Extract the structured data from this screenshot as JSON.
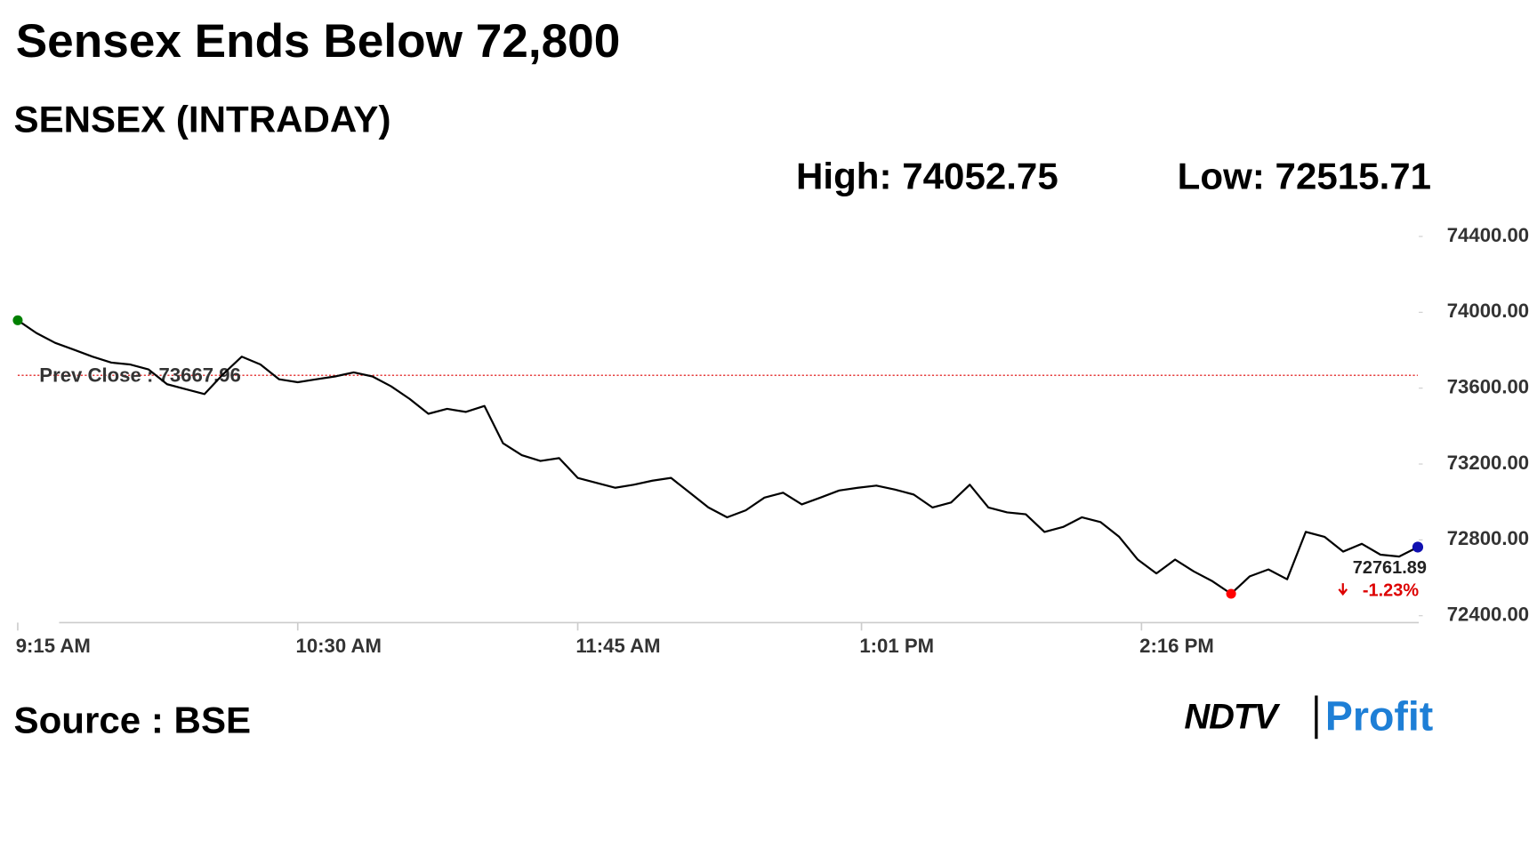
{
  "chart_data": {
    "type": "line",
    "title": "Sensex Ends Below 72,800",
    "subtitle": "SENSEX (INTRADAY)",
    "high": {
      "label": "High:",
      "value": 74052.75
    },
    "low": {
      "label": "Low:",
      "value": 72515.71
    },
    "prev_close": {
      "label": "Prev Close :",
      "value": 73667.96
    },
    "last": {
      "value": 72761.89,
      "change": -1.23,
      "change_label": "-1.23%"
    },
    "source": "Source : BSE",
    "logo": [
      "NDTV",
      "Profit"
    ],
    "color": "#000000",
    "x": [
      "9:15 AM",
      "9:20 AM",
      "9:25 AM",
      "9:30 AM",
      "9:35 AM",
      "9:40 AM",
      "9:45 AM",
      "9:50 AM",
      "9:55 AM",
      "10:00 AM",
      "10:05 AM",
      "10:10 AM",
      "10:15 AM",
      "10:20 AM",
      "10:25 AM",
      "10:30 AM",
      "10:35 AM",
      "10:40 AM",
      "10:45 AM",
      "10:50 AM",
      "10:55 AM",
      "11:00 AM",
      "11:05 AM",
      "11:10 AM",
      "11:15 AM",
      "11:20 AM",
      "11:25 AM",
      "11:30 AM",
      "11:35 AM",
      "11:40 AM",
      "11:45 AM",
      "11:50 AM",
      "11:55 AM",
      "12:00 PM",
      "12:05 PM",
      "12:10 PM",
      "12:15 PM",
      "12:20 PM",
      "12:25 PM",
      "12:30 PM",
      "12:35 PM",
      "12:40 PM",
      "12:45 PM",
      "12:50 PM",
      "12:55 PM",
      "1:00 PM",
      "1:05 PM",
      "1:10 PM",
      "1:15 PM",
      "1:20 PM",
      "1:25 PM",
      "1:30 PM",
      "1:35 PM",
      "1:40 PM",
      "1:45 PM",
      "1:50 PM",
      "1:55 PM",
      "2:00 PM",
      "2:05 PM",
      "2:10 PM",
      "2:15 PM",
      "2:20 PM",
      "2:25 PM",
      "2:30 PM",
      "2:35 PM",
      "2:40 PM",
      "2:45 PM",
      "2:50 PM",
      "2:55 PM",
      "3:00 PM",
      "3:05 PM",
      "3:10 PM",
      "3:15 PM",
      "3:20 PM",
      "3:25 PM",
      "3:30 PM"
    ],
    "values": [
      73958,
      73891,
      73839,
      73803,
      73766,
      73735,
      73725,
      73699,
      73621,
      73595,
      73569,
      73673,
      73766,
      73725,
      73647,
      73631,
      73647,
      73662,
      73683,
      73662,
      73610,
      73543,
      73465,
      73491,
      73475,
      73506,
      73309,
      73247,
      73216,
      73231,
      73127,
      73101,
      73075,
      73091,
      73112,
      73127,
      73049,
      72971,
      72919,
      72956,
      73023,
      73049,
      72987,
      73023,
      73060,
      73075,
      73086,
      73065,
      73039,
      72971,
      72997,
      73091,
      72971,
      72945,
      72935,
      72842,
      72868,
      72919,
      72894,
      72816,
      72696,
      72623,
      72696,
      72634,
      72582,
      72515.71,
      72608,
      72644,
      72592,
      72842,
      72816,
      72738,
      72779,
      72722,
      72712,
      72761.89
    ],
    "xlim": [
      "9:15 AM",
      "3:30 PM"
    ],
    "xticks": [
      "9:15 AM",
      "10:30 AM",
      "11:45 AM",
      "1:01 PM",
      "2:16 PM"
    ],
    "ylim": [
      72400,
      74400
    ],
    "yticks": [
      {
        "value": 72400,
        "label": "72400.00"
      },
      {
        "value": 72800,
        "label": "72800.00"
      },
      {
        "value": 73200,
        "label": "73200.00"
      },
      {
        "value": 73600,
        "label": "73600.00"
      },
      {
        "value": 74000,
        "label": "74000.00"
      },
      {
        "value": 74400,
        "label": "74400.00"
      }
    ]
  }
}
